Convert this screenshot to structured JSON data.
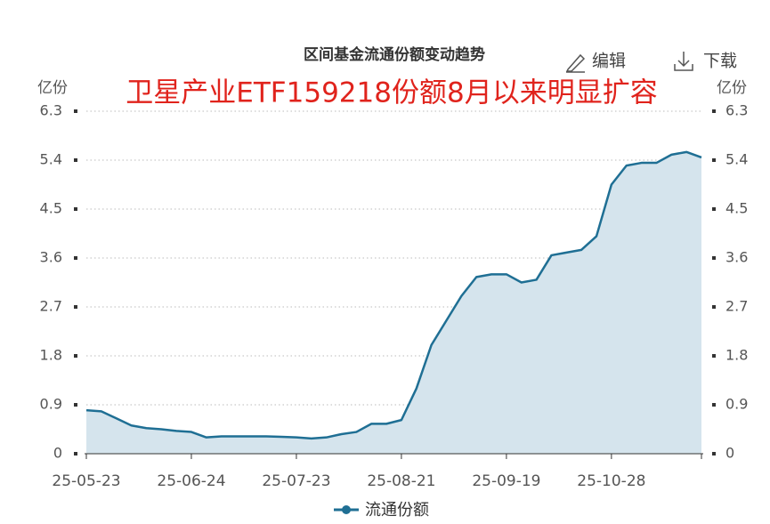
{
  "toolbar": [
    "编辑",
    "下载"
  ],
  "chart_data": {
    "type": "area",
    "title": "区间基金流通份额变动趋势",
    "annotation": "卫星产业ETF159218份额8月以来明显扩容",
    "y_unit": "亿份",
    "y2_unit": "亿份",
    "categories": [
      "25-05-23",
      null,
      null,
      null,
      null,
      null,
      null,
      "25-06-24",
      null,
      null,
      null,
      null,
      null,
      null,
      "25-07-23",
      null,
      null,
      null,
      null,
      null,
      null,
      "25-08-21",
      null,
      null,
      null,
      null,
      null,
      null,
      "25-09-19",
      null,
      null,
      null,
      null,
      null,
      null,
      "25-10-28",
      null,
      null,
      null,
      null,
      null,
      null
    ],
    "series": [
      {
        "name": "流通份额",
        "color": "#1f6f94",
        "fill": "#d5e4ed",
        "values": [
          0.8,
          0.78,
          0.65,
          0.52,
          0.47,
          0.45,
          0.42,
          0.4,
          0.3,
          0.32,
          0.32,
          0.32,
          0.32,
          0.31,
          0.3,
          0.28,
          0.3,
          0.36,
          0.4,
          0.55,
          0.55,
          0.62,
          1.2,
          2.0,
          2.45,
          2.9,
          3.25,
          3.3,
          3.3,
          3.15,
          3.2,
          3.65,
          3.7,
          3.75,
          4.0,
          4.95,
          5.3,
          5.35,
          5.35,
          5.5,
          5.55,
          5.45
        ]
      }
    ],
    "ylim": [
      0,
      6.3
    ],
    "yticks": [
      0,
      0.9,
      1.8,
      2.7,
      3.6,
      4.5,
      5.4,
      6.3
    ],
    "y2lim": [
      0,
      6.3
    ],
    "y2ticks": [
      0,
      0.9,
      1.8,
      2.7,
      3.6,
      4.5,
      5.4,
      6.3
    ],
    "grid": true
  }
}
